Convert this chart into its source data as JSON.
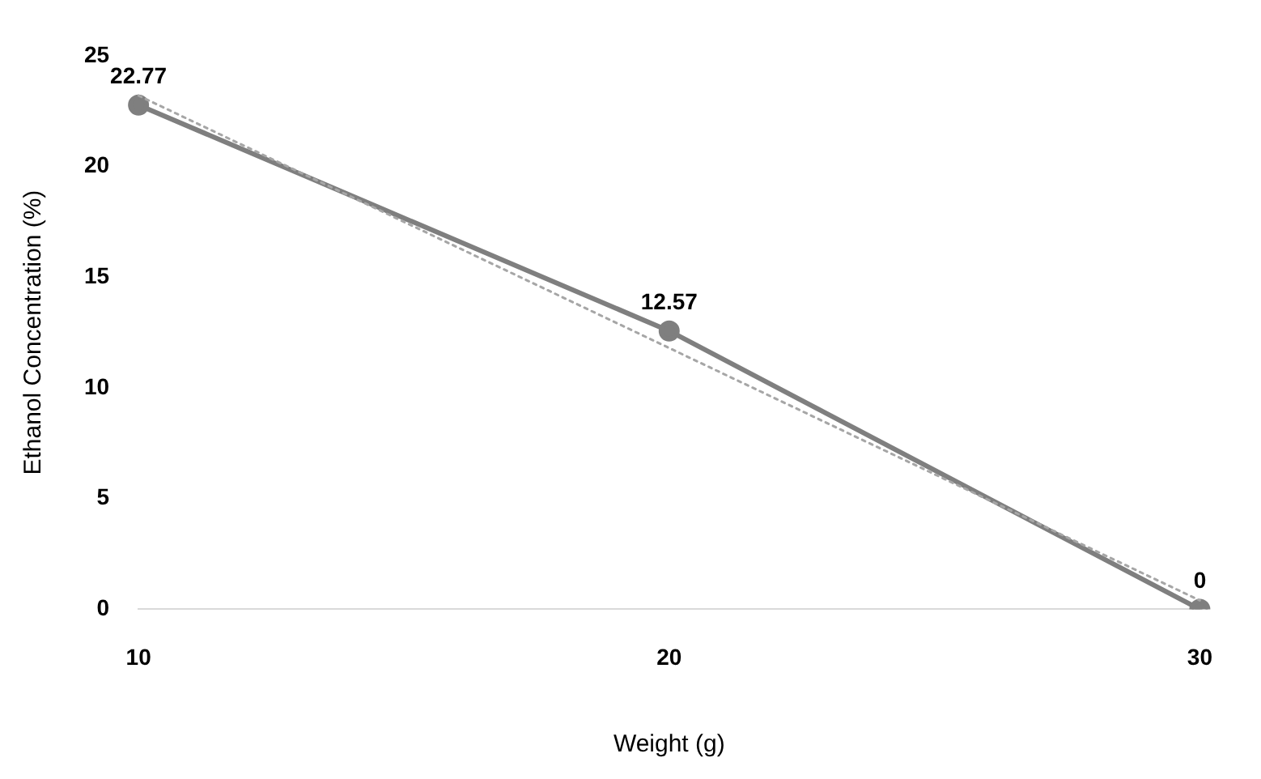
{
  "chart_data": {
    "type": "line",
    "xlabel": "Weight (g)",
    "ylabel": "Ethanol Concentration (%)",
    "categories": [
      "10",
      "20",
      "30"
    ],
    "series": [
      {
        "color": "#7f7f7f",
        "values": [
          22.77,
          12.57,
          0
        ],
        "value_labels": [
          "22.77",
          "12.57",
          "0"
        ],
        "marker": "circle",
        "line_style": "solid"
      },
      {
        "color": "#a6a6a6",
        "values": [
          23.2,
          11.8,
          0.4
        ],
        "marker": "none",
        "line_style": "dotted"
      }
    ],
    "ylim": [
      0,
      25
    ],
    "yticks": [
      0,
      5,
      10,
      15,
      20,
      25
    ],
    "grid": false,
    "legend": false
  }
}
